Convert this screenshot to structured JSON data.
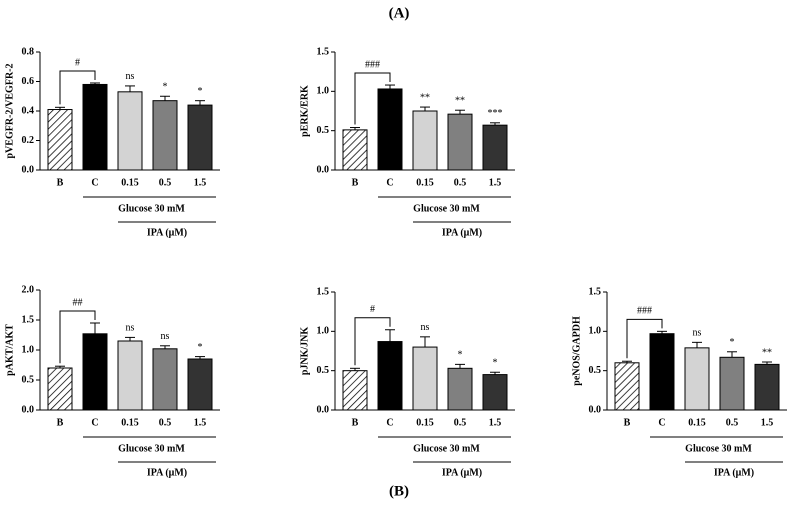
{
  "labels": {
    "a": "(A)",
    "b": "(B)"
  },
  "chart_data": [
    {
      "type": "bar",
      "ylabel": "pVEGFR-2/VEGFR-2",
      "categories": [
        "B",
        "C",
        "0.15",
        "0.5",
        "1.5"
      ],
      "values": [
        0.41,
        0.58,
        0.53,
        0.47,
        0.44
      ],
      "errors": [
        0.015,
        0.01,
        0.04,
        0.03,
        0.03
      ],
      "colors": [
        "#ffffff",
        "#000000",
        "#d3d3d3",
        "#808080",
        "#333333"
      ],
      "hatch": [
        true,
        false,
        false,
        false,
        false
      ],
      "ylim": [
        0,
        0.8
      ],
      "yticks": [
        {
          "value": 0,
          "label": "0.0"
        },
        0.2,
        0.4,
        0.6,
        0.8
      ],
      "bracket_label": "#",
      "marks": [
        null,
        null,
        "ns",
        "*",
        "*"
      ],
      "group_label": "Glucose 30 mM",
      "subgroup_label": "IPA (μM)"
    },
    {
      "type": "bar",
      "ylabel": "pERK/ERK",
      "categories": [
        "B",
        "C",
        "0.15",
        "0.5",
        "1.5"
      ],
      "values": [
        0.51,
        1.03,
        0.75,
        0.71,
        0.57
      ],
      "errors": [
        0.03,
        0.05,
        0.05,
        0.05,
        0.03
      ],
      "colors": [
        "#ffffff",
        "#000000",
        "#d3d3d3",
        "#808080",
        "#333333"
      ],
      "hatch": [
        true,
        false,
        false,
        false,
        false
      ],
      "ylim": [
        0,
        1.5
      ],
      "yticks": [
        {
          "value": 0,
          "label": "0.0"
        },
        0.5,
        {
          "value": 1,
          "label": "1.0"
        },
        1.5
      ],
      "bracket_label": "###",
      "marks": [
        null,
        null,
        "**",
        "**",
        "***"
      ],
      "group_label": "Glucose 30 mM",
      "subgroup_label": "IPA (μM)"
    },
    {
      "type": "bar",
      "ylabel": "pAKT/AKT",
      "categories": [
        "B",
        "C",
        "0.15",
        "0.5",
        "1.5"
      ],
      "values": [
        0.7,
        1.27,
        1.15,
        1.02,
        0.85
      ],
      "errors": [
        0.03,
        0.18,
        0.06,
        0.05,
        0.04
      ],
      "colors": [
        "#ffffff",
        "#000000",
        "#d3d3d3",
        "#808080",
        "#333333"
      ],
      "hatch": [
        true,
        false,
        false,
        false,
        false
      ],
      "ylim": [
        0,
        2
      ],
      "yticks": [
        {
          "value": 0,
          "label": "0.0"
        },
        0.5,
        {
          "value": 1,
          "label": "1.0"
        },
        1.5,
        {
          "value": 2,
          "label": "2.0"
        }
      ],
      "bracket_label": "##",
      "marks": [
        null,
        null,
        "ns",
        "ns",
        "*"
      ],
      "group_label": "Glucose 30 mM",
      "subgroup_label": "IPA (μM)"
    },
    {
      "type": "bar",
      "ylabel": "pJNK/JNK",
      "categories": [
        "B",
        "C",
        "0.15",
        "0.5",
        "1.5"
      ],
      "values": [
        0.5,
        0.87,
        0.8,
        0.53,
        0.45
      ],
      "errors": [
        0.03,
        0.15,
        0.13,
        0.05,
        0.03
      ],
      "colors": [
        "#ffffff",
        "#000000",
        "#d3d3d3",
        "#808080",
        "#333333"
      ],
      "hatch": [
        true,
        false,
        false,
        false,
        false
      ],
      "ylim": [
        0,
        1.5
      ],
      "yticks": [
        {
          "value": 0,
          "label": "0.0"
        },
        0.5,
        {
          "value": 1,
          "label": "1.0"
        },
        1.5
      ],
      "bracket_label": "#",
      "marks": [
        null,
        null,
        "ns",
        "*",
        "*"
      ],
      "group_label": "Glucose 30 mM",
      "subgroup_label": "IPA (μM)"
    },
    {
      "type": "bar",
      "ylabel": "peNOS/GAPDH",
      "categories": [
        "B",
        "C",
        "0.15",
        "0.5",
        "1.5"
      ],
      "values": [
        0.6,
        0.97,
        0.79,
        0.67,
        0.58
      ],
      "errors": [
        0.02,
        0.03,
        0.07,
        0.07,
        0.03
      ],
      "colors": [
        "#ffffff",
        "#000000",
        "#d3d3d3",
        "#808080",
        "#333333"
      ],
      "hatch": [
        true,
        false,
        false,
        false,
        false
      ],
      "ylim": [
        0,
        1.5
      ],
      "yticks": [
        {
          "value": 0,
          "label": "0.0"
        },
        0.5,
        {
          "value": 1,
          "label": "1.0"
        },
        1.5
      ],
      "bracket_label": "###",
      "marks": [
        null,
        null,
        "ns",
        "*",
        "**"
      ],
      "group_label": "Glucose 30 mM",
      "subgroup_label": "IPA (μM)"
    }
  ]
}
